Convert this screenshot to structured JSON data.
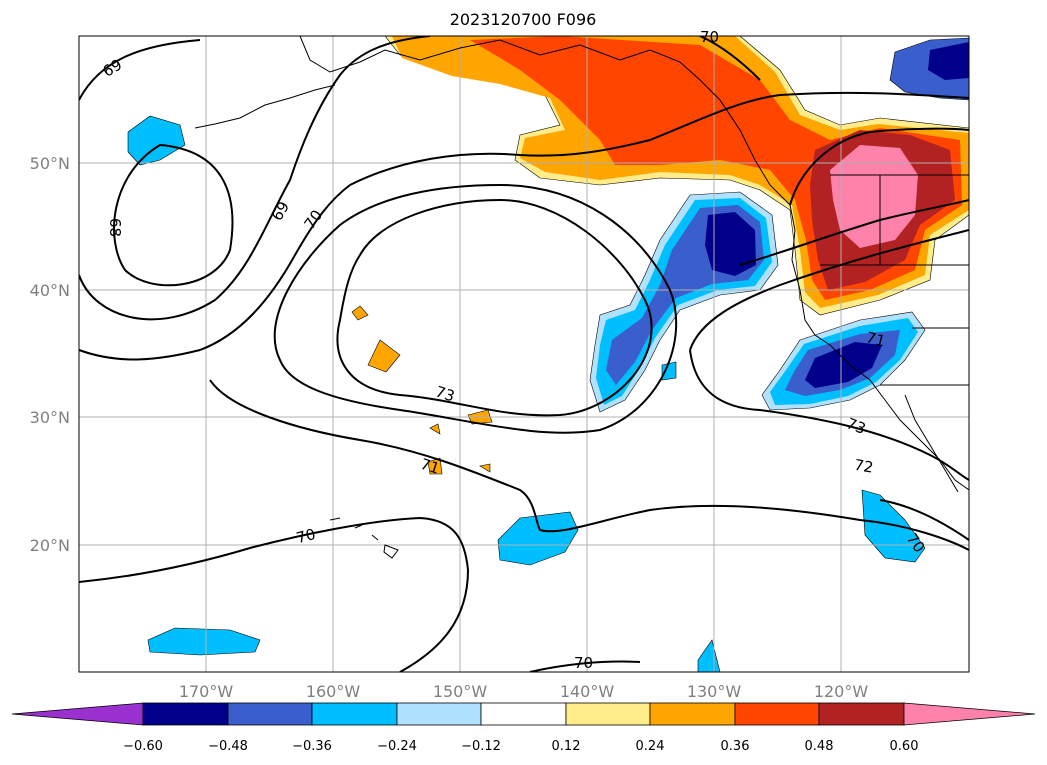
{
  "title": "2023120700 F096",
  "map": {
    "lon_range": [
      -180,
      -110
    ],
    "lat_range": [
      10,
      60
    ],
    "lon_labels": [
      "170°W",
      "160°W",
      "150°W",
      "140°W",
      "130°W",
      "120°W"
    ],
    "lat_labels": [
      "50°N",
      "40°N",
      "30°N",
      "20°N"
    ],
    "gridlines": true
  },
  "contours": {
    "labels": [
      "69",
      "69",
      "68",
      "70",
      "70",
      "73",
      "73",
      "71",
      "71",
      "72",
      "70",
      "70",
      "70"
    ]
  },
  "colorbar": {
    "tick_labels": [
      "−0.60",
      "−0.48",
      "−0.36",
      "−0.24",
      "−0.12",
      "0.12",
      "0.24",
      "0.36",
      "0.48",
      "0.60"
    ],
    "colors": {
      "lt_neg060": "#9b30d0",
      "neg060_neg048": "#00008b",
      "neg048_neg036": "#3a5fcd",
      "neg036_neg024": "#00bfff",
      "neg024_neg012": "#b0e2ff",
      "neg012_012": "#ffffff",
      "p012_p024": "#ffec8b",
      "p024_p036": "#ffa500",
      "p036_p048": "#ff4500",
      "p048_p060": "#b22222",
      "gt_060": "#ff82ab"
    }
  }
}
